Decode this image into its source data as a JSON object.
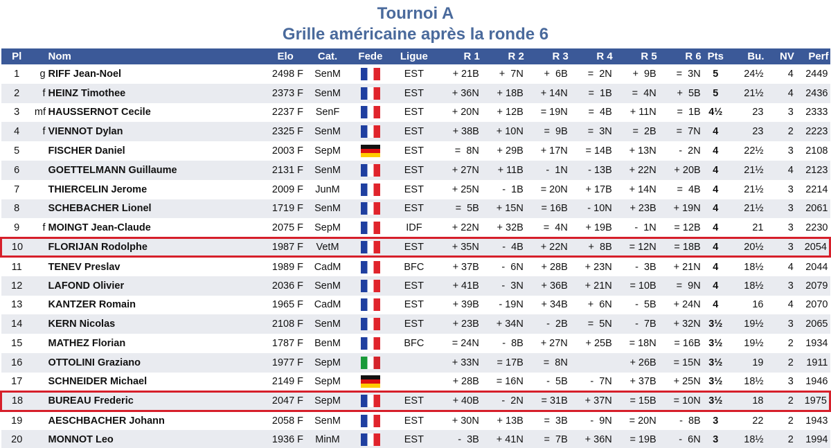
{
  "title": "Tournoi A",
  "subtitle": "Grille américaine après la ronde 6",
  "columns": {
    "pl": "Pl",
    "nom": "Nom",
    "elo": "Elo",
    "cat": "Cat.",
    "fede": "Fede",
    "ligue": "Ligue",
    "r1": "R 1",
    "r2": "R 2",
    "r3": "R 3",
    "r4": "R 4",
    "r5": "R 5",
    "r6": "R 6",
    "pts": "Pts",
    "bu": "Bu.",
    "nv": "NV",
    "perf": "Perf"
  },
  "rows": [
    {
      "pl": "1",
      "title": "g",
      "name": "RIFF Jean-Noel",
      "elo": "2498 F",
      "cat": "SenM",
      "flag": "fr",
      "ligue": "EST",
      "r1": "+ 21B",
      "r2": "+  7N",
      "r3": "+  6B",
      "r4": "=  2N",
      "r5": "+  9B",
      "r6": "=  3N",
      "pts": "5",
      "bu": "24½",
      "nv": "4",
      "perf": "2449"
    },
    {
      "pl": "2",
      "title": "f",
      "name": "HEINZ Timothee",
      "elo": "2373 F",
      "cat": "SenM",
      "flag": "fr",
      "ligue": "EST",
      "r1": "+ 36N",
      "r2": "+ 18B",
      "r3": "+ 14N",
      "r4": "=  1B",
      "r5": "=  4N",
      "r6": "+  5B",
      "pts": "5",
      "bu": "21½",
      "nv": "4",
      "perf": "2436"
    },
    {
      "pl": "3",
      "title": "mf",
      "name": "HAUSSERNOT Cecile",
      "elo": "2237 F",
      "cat": "SenF",
      "flag": "fr",
      "ligue": "EST",
      "r1": "+ 20N",
      "r2": "+ 12B",
      "r3": "= 19N",
      "r4": "=  4B",
      "r5": "+ 11N",
      "r6": "=  1B",
      "pts": "4½",
      "bu": "23",
      "nv": "3",
      "perf": "2333"
    },
    {
      "pl": "4",
      "title": "f",
      "name": "VIENNOT Dylan",
      "elo": "2325 F",
      "cat": "SenM",
      "flag": "fr",
      "ligue": "EST",
      "r1": "+ 38B",
      "r2": "+ 10N",
      "r3": "=  9B",
      "r4": "=  3N",
      "r5": "=  2B",
      "r6": "=  7N",
      "pts": "4",
      "bu": "23",
      "nv": "2",
      "perf": "2223"
    },
    {
      "pl": "5",
      "title": "",
      "name": "FISCHER Daniel",
      "elo": "2003 F",
      "cat": "SepM",
      "flag": "de",
      "ligue": "EST",
      "r1": "=  8N",
      "r2": "+ 29B",
      "r3": "+ 17N",
      "r4": "= 14B",
      "r5": "+ 13N",
      "r6": "-  2N",
      "pts": "4",
      "bu": "22½",
      "nv": "3",
      "perf": "2108"
    },
    {
      "pl": "6",
      "title": "",
      "name": "GOETTELMANN Guillaume",
      "elo": "2131 F",
      "cat": "SenM",
      "flag": "fr",
      "ligue": "EST",
      "r1": "+ 27N",
      "r2": "+ 11B",
      "r3": "-  1N",
      "r4": "- 13B",
      "r5": "+ 22N",
      "r6": "+ 20B",
      "pts": "4",
      "bu": "21½",
      "nv": "4",
      "perf": "2123"
    },
    {
      "pl": "7",
      "title": "",
      "name": "THIERCELIN Jerome",
      "elo": "2009 F",
      "cat": "JunM",
      "flag": "fr",
      "ligue": "EST",
      "r1": "+ 25N",
      "r2": "-  1B",
      "r3": "= 20N",
      "r4": "+ 17B",
      "r5": "+ 14N",
      "r6": "=  4B",
      "pts": "4",
      "bu": "21½",
      "nv": "3",
      "perf": "2214"
    },
    {
      "pl": "8",
      "title": "",
      "name": "SCHEBACHER Lionel",
      "elo": "1719 F",
      "cat": "SenM",
      "flag": "fr",
      "ligue": "EST",
      "r1": "=  5B",
      "r2": "+ 15N",
      "r3": "= 16B",
      "r4": "- 10N",
      "r5": "+ 23B",
      "r6": "+ 19N",
      "pts": "4",
      "bu": "21½",
      "nv": "3",
      "perf": "2061"
    },
    {
      "pl": "9",
      "title": "f",
      "name": "MOINGT Jean-Claude",
      "elo": "2075 F",
      "cat": "SepM",
      "flag": "fr",
      "ligue": "IDF",
      "r1": "+ 22N",
      "r2": "+ 32B",
      "r3": "=  4N",
      "r4": "+ 19B",
      "r5": "-  1N",
      "r6": "= 12B",
      "pts": "4",
      "bu": "21",
      "nv": "3",
      "perf": "2230"
    },
    {
      "pl": "10",
      "title": "",
      "name": "FLORIJAN Rodolphe",
      "elo": "1987 F",
      "cat": "VetM",
      "flag": "fr",
      "ligue": "EST",
      "r1": "+ 35N",
      "r2": "-  4B",
      "r3": "+ 22N",
      "r4": "+  8B",
      "r5": "= 12N",
      "r6": "= 18B",
      "pts": "4",
      "bu": "20½",
      "nv": "3",
      "perf": "2054",
      "highlight": true
    },
    {
      "pl": "11",
      "title": "",
      "name": "TENEV Preslav",
      "elo": "1989 F",
      "cat": "CadM",
      "flag": "fr",
      "ligue": "BFC",
      "r1": "+ 37B",
      "r2": "-  6N",
      "r3": "+ 28B",
      "r4": "+ 23N",
      "r5": "-  3B",
      "r6": "+ 21N",
      "pts": "4",
      "bu": "18½",
      "nv": "4",
      "perf": "2044"
    },
    {
      "pl": "12",
      "title": "",
      "name": "LAFOND Olivier",
      "elo": "2036 F",
      "cat": "SenM",
      "flag": "fr",
      "ligue": "EST",
      "r1": "+ 41B",
      "r2": "-  3N",
      "r3": "+ 36B",
      "r4": "+ 21N",
      "r5": "= 10B",
      "r6": "=  9N",
      "pts": "4",
      "bu": "18½",
      "nv": "3",
      "perf": "2079"
    },
    {
      "pl": "13",
      "title": "",
      "name": "KANTZER Romain",
      "elo": "1965 F",
      "cat": "CadM",
      "flag": "fr",
      "ligue": "EST",
      "r1": "+ 39B",
      "r2": "- 19N",
      "r3": "+ 34B",
      "r4": "+  6N",
      "r5": "-  5B",
      "r6": "+ 24N",
      "pts": "4",
      "bu": "16",
      "nv": "4",
      "perf": "2070"
    },
    {
      "pl": "14",
      "title": "",
      "name": "KERN Nicolas",
      "elo": "2108 F",
      "cat": "SenM",
      "flag": "fr",
      "ligue": "EST",
      "r1": "+ 23B",
      "r2": "+ 34N",
      "r3": "-  2B",
      "r4": "=  5N",
      "r5": "-  7B",
      "r6": "+ 32N",
      "pts": "3½",
      "bu": "19½",
      "nv": "3",
      "perf": "2065"
    },
    {
      "pl": "15",
      "title": "",
      "name": "MATHEZ Florian",
      "elo": "1787 F",
      "cat": "BenM",
      "flag": "fr",
      "ligue": "BFC",
      "r1": "= 24N",
      "r2": "-  8B",
      "r3": "+ 27N",
      "r4": "+ 25B",
      "r5": "= 18N",
      "r6": "= 16B",
      "pts": "3½",
      "bu": "19½",
      "nv": "2",
      "perf": "1934"
    },
    {
      "pl": "16",
      "title": "",
      "name": "OTTOLINI Graziano",
      "elo": "1977 F",
      "cat": "SepM",
      "flag": "it",
      "ligue": "",
      "r1": "+ 33N",
      "r2": "= 17B",
      "r3": "=  8N",
      "r4": "",
      "r5": "+ 26B",
      "r6": "= 15N",
      "pts": "3½",
      "bu": "19",
      "nv": "2",
      "perf": "1911"
    },
    {
      "pl": "17",
      "title": "",
      "name": "SCHNEIDER Michael",
      "elo": "2149 F",
      "cat": "SepM",
      "flag": "de",
      "ligue": "",
      "r1": "+ 28B",
      "r2": "= 16N",
      "r3": "-  5B",
      "r4": "-  7N",
      "r5": "+ 37B",
      "r6": "+ 25N",
      "pts": "3½",
      "bu": "18½",
      "nv": "3",
      "perf": "1946"
    },
    {
      "pl": "18",
      "title": "",
      "name": "BUREAU Frederic",
      "elo": "2047 F",
      "cat": "SepM",
      "flag": "fr",
      "ligue": "EST",
      "r1": "+ 40B",
      "r2": "-  2N",
      "r3": "= 31B",
      "r4": "+ 37N",
      "r5": "= 15B",
      "r6": "= 10N",
      "pts": "3½",
      "bu": "18",
      "nv": "2",
      "perf": "1975",
      "highlight": true
    },
    {
      "pl": "19",
      "title": "",
      "name": "AESCHBACHER Johann",
      "elo": "2058 F",
      "cat": "SenM",
      "flag": "fr",
      "ligue": "EST",
      "r1": "+ 30N",
      "r2": "+ 13B",
      "r3": "=  3B",
      "r4": "-  9N",
      "r5": "= 20N",
      "r6": "-  8B",
      "pts": "3",
      "bu": "22",
      "nv": "2",
      "perf": "1943"
    },
    {
      "pl": "20",
      "title": "",
      "name": "MONNOT Leo",
      "elo": "1936 F",
      "cat": "MinM",
      "flag": "fr",
      "ligue": "EST",
      "r1": "-  3B",
      "r2": "+ 41N",
      "r3": "=  7B",
      "r4": "+ 36N",
      "r5": "= 19B",
      "r6": "-  6N",
      "pts": "3",
      "bu": "18½",
      "nv": "2",
      "perf": "1994"
    }
  ]
}
